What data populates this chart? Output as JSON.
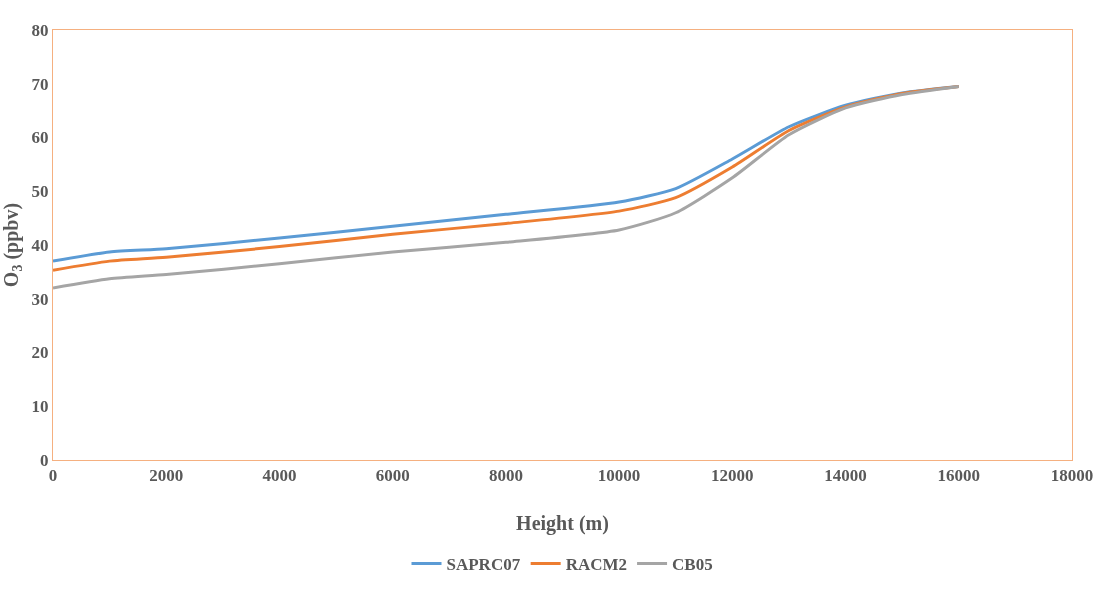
{
  "chart_data": {
    "type": "line",
    "xlabel": "Height (m)",
    "ylabel": "O$_{3}$ (ppbv)",
    "x": [
      0,
      1000,
      2000,
      4000,
      6000,
      8000,
      10000,
      11000,
      12000,
      13000,
      14000,
      15000,
      16000
    ],
    "series": [
      {
        "name": "SAPRC07",
        "color": "#5b9bd5",
        "values": [
          37,
          38.7,
          39.3,
          41.3,
          43.5,
          45.7,
          48,
          50.5,
          56,
          62,
          66,
          68.3,
          69.5
        ]
      },
      {
        "name": "RACM2",
        "color": "#ed7d31",
        "values": [
          35.3,
          37,
          37.7,
          39.7,
          42,
          44,
          46.3,
          48.8,
          54.5,
          61.3,
          65.7,
          68.2,
          69.5
        ]
      },
      {
        "name": "CB05",
        "color": "#a5a5a5",
        "values": [
          32,
          33.7,
          34.5,
          36.5,
          38.7,
          40.5,
          42.8,
          46,
          52.5,
          60.5,
          65.5,
          68,
          69.5
        ]
      }
    ],
    "xlim": [
      0,
      18000
    ],
    "xticks": [
      0,
      2000,
      4000,
      6000,
      8000,
      10000,
      12000,
      14000,
      16000,
      18000
    ],
    "ylim": [
      0,
      80
    ],
    "yticks": [
      0,
      10,
      20,
      30,
      40,
      50,
      60,
      70,
      80
    ],
    "grid": false,
    "legend": "bottom",
    "marker": "none",
    "line_style": "solid"
  }
}
